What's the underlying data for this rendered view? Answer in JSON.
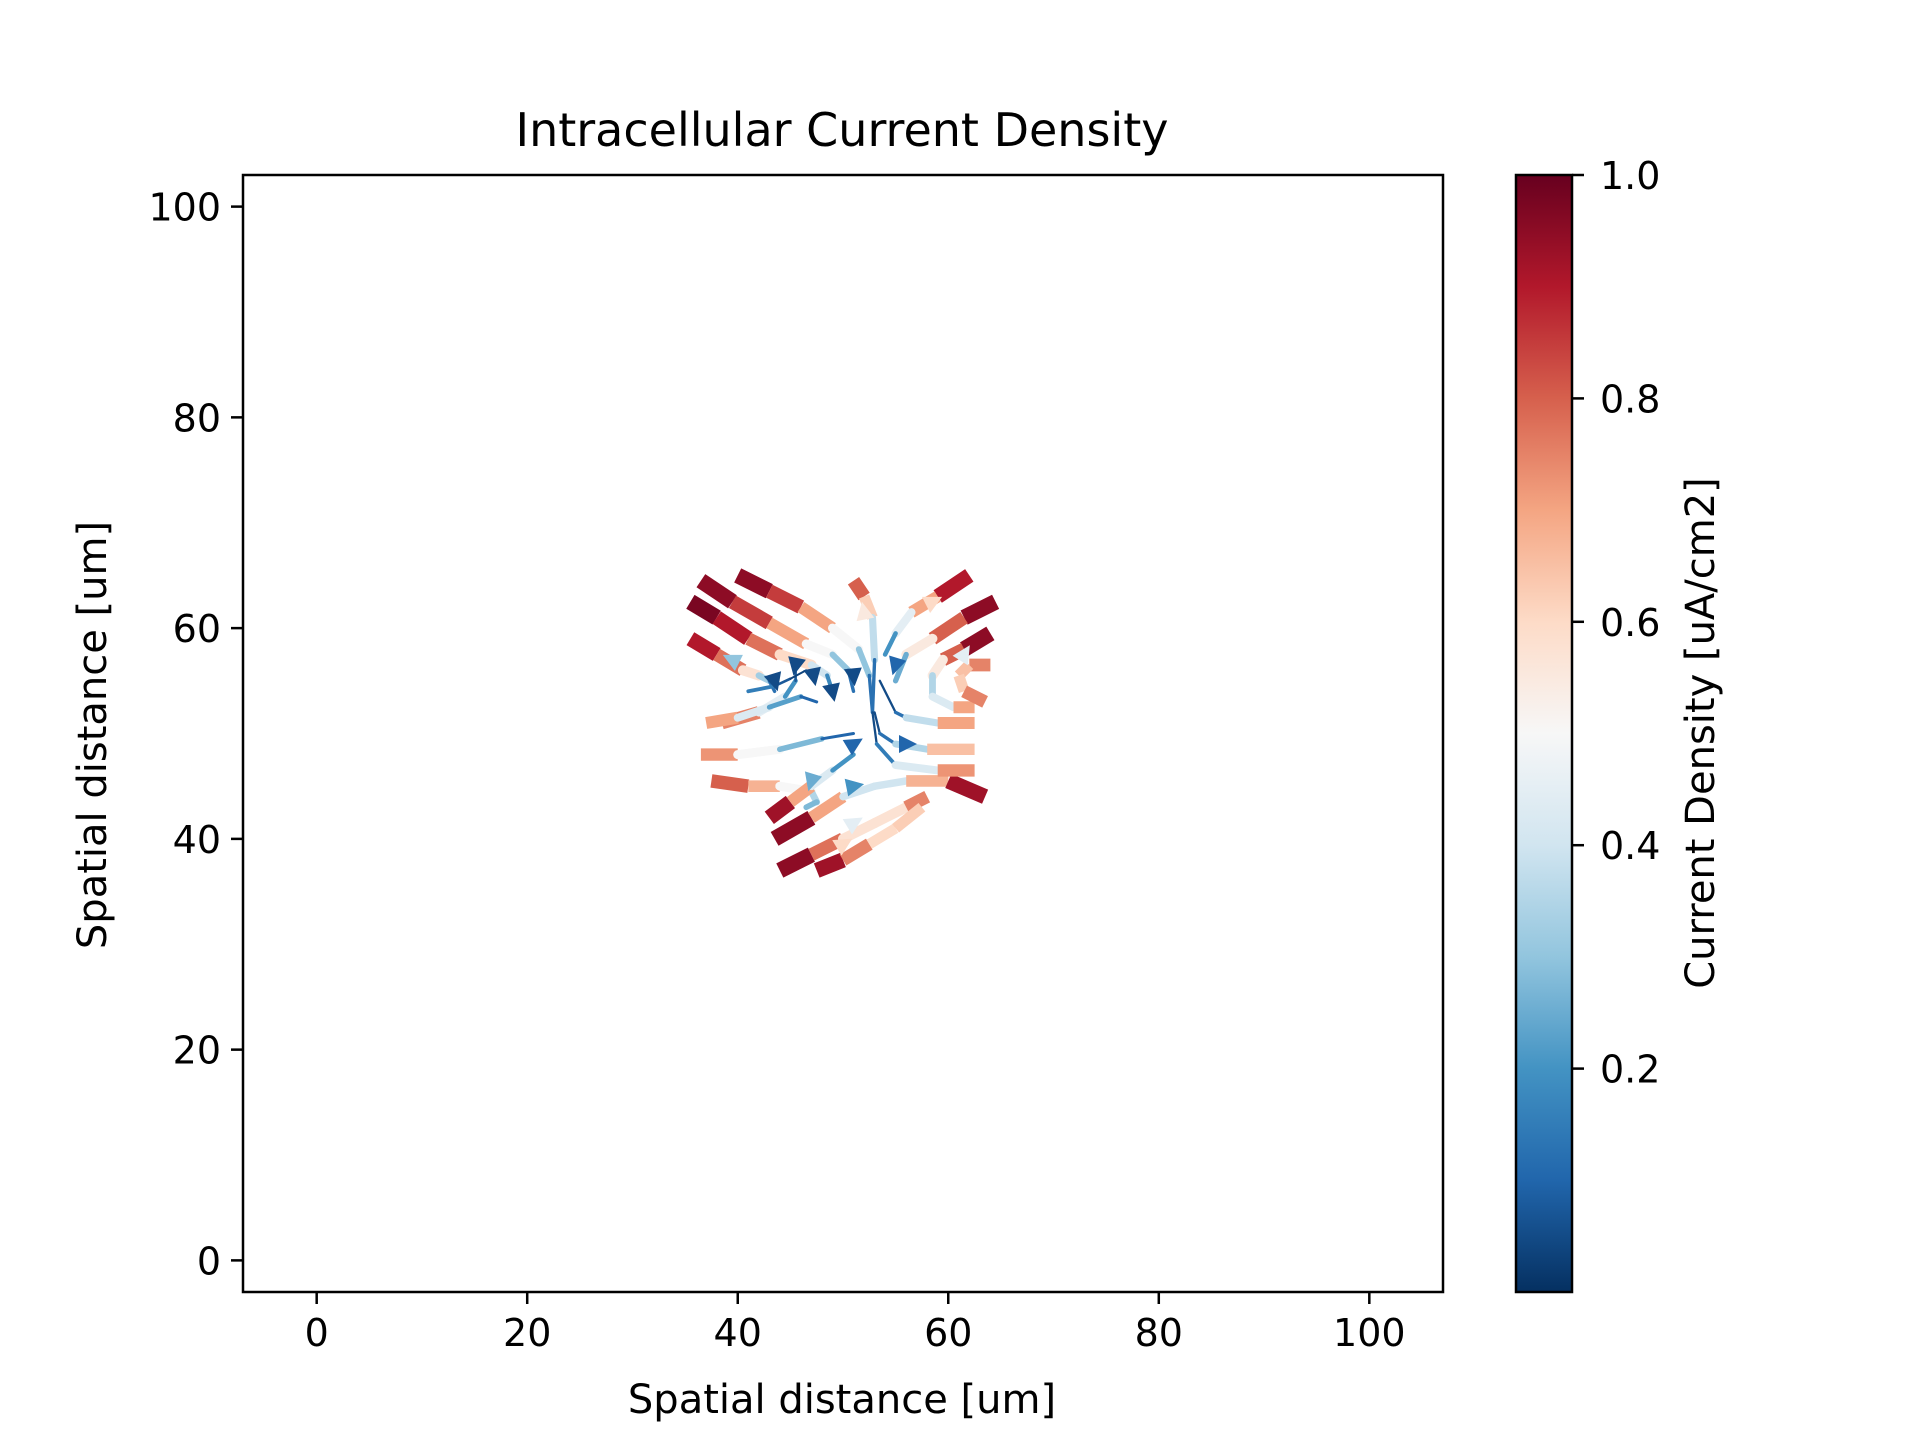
{
  "chart_data": {
    "type": "streamplot",
    "title": "Intracellular Current Density",
    "xlabel": "Spatial distance [um]",
    "ylabel": "Spatial distance [um]",
    "xlim": [
      -7,
      107
    ],
    "ylim": [
      -3,
      103
    ],
    "xticks": [
      0,
      20,
      40,
      60,
      80,
      100
    ],
    "yticks": [
      0,
      20,
      40,
      60,
      80,
      100
    ],
    "grid": false,
    "colorbar": {
      "label": "Current Density [uA/cm2]",
      "colormap": "RdBu_r",
      "range": [
        0.0,
        1.0
      ],
      "ticks": [
        0.2,
        0.4,
        0.6,
        0.8,
        1.0
      ]
    },
    "colors": {
      "low": "#053061",
      "mid": "#f7f7f7",
      "high": "#67001f"
    },
    "streamlines": [
      {
        "points": [
          [
            35.5,
            62.5
          ],
          [
            38,
            61
          ],
          [
            41,
            59
          ],
          [
            44,
            57.5
          ],
          [
            47,
            56.5
          ],
          [
            48.5,
            55.5
          ],
          [
            49,
            54
          ]
        ],
        "values": [
          1.0,
          0.95,
          0.85,
          0.7,
          0.5,
          0.3,
          0.05
        ]
      },
      {
        "points": [
          [
            36.5,
            64.5
          ],
          [
            39.5,
            62.5
          ],
          [
            43,
            60.5
          ],
          [
            46.5,
            58.5
          ],
          [
            49,
            57.5
          ],
          [
            50.5,
            56
          ],
          [
            51,
            54
          ]
        ],
        "values": [
          1.0,
          0.9,
          0.8,
          0.6,
          0.4,
          0.2,
          0.05
        ]
      },
      {
        "points": [
          [
            40,
            65
          ],
          [
            43,
            63.5
          ],
          [
            46,
            62
          ],
          [
            49,
            60
          ],
          [
            51.5,
            58
          ],
          [
            52.5,
            55.5
          ],
          [
            52.8,
            52
          ]
        ],
        "values": [
          1.0,
          0.9,
          0.8,
          0.6,
          0.4,
          0.2,
          0.05
        ]
      },
      {
        "points": [
          [
            35.5,
            59
          ],
          [
            38,
            57.5
          ],
          [
            40.5,
            56
          ],
          [
            42,
            55.5
          ],
          [
            43,
            55
          ],
          [
            43.5,
            54
          ]
        ],
        "values": [
          0.95,
          0.85,
          0.7,
          0.45,
          0.2,
          0.05
        ]
      },
      {
        "points": [
          [
            38.5,
            51
          ],
          [
            42,
            52
          ],
          [
            44.5,
            53.5
          ],
          [
            45.5,
            55
          ],
          [
            45.5,
            56.5
          ]
        ],
        "values": [
          0.9,
          0.6,
          0.3,
          0.1,
          0.05
        ]
      },
      {
        "points": [
          [
            41,
            54
          ],
          [
            43.5,
            54.5
          ],
          [
            45,
            55.2
          ],
          [
            46.5,
            56
          ]
        ],
        "values": [
          0.2,
          0.1,
          0.05,
          0.02
        ]
      },
      {
        "points": [
          [
            37,
            51
          ],
          [
            40,
            51.5
          ],
          [
            43,
            52.5
          ],
          [
            46,
            53.5
          ],
          [
            47.5,
            53
          ]
        ],
        "values": [
          0.85,
          0.55,
          0.3,
          0.15,
          0.05
        ]
      },
      {
        "points": [
          [
            36.5,
            48
          ],
          [
            40,
            48
          ],
          [
            44,
            48.5
          ],
          [
            48,
            49.5
          ],
          [
            51,
            50
          ]
        ],
        "values": [
          0.85,
          0.6,
          0.4,
          0.15,
          0.05
        ]
      },
      {
        "points": [
          [
            37.5,
            45.5
          ],
          [
            41,
            45
          ],
          [
            44,
            45
          ],
          [
            47,
            44.5
          ],
          [
            47.5,
            43.5
          ],
          [
            46.5,
            43
          ]
        ],
        "values": [
          0.85,
          0.75,
          0.6,
          0.4,
          0.3,
          0.25
        ]
      },
      {
        "points": [
          [
            43,
            42
          ],
          [
            45,
            43.5
          ],
          [
            47,
            45
          ],
          [
            49,
            46.5
          ],
          [
            51,
            48
          ]
        ],
        "values": [
          1.0,
          0.85,
          0.55,
          0.3,
          0.1
        ]
      },
      {
        "points": [
          [
            43.5,
            40
          ],
          [
            47,
            42
          ],
          [
            50,
            44
          ],
          [
            53,
            45
          ],
          [
            56,
            45.5
          ],
          [
            60,
            45.5
          ],
          [
            63.5,
            44
          ]
        ],
        "values": [
          1.0,
          0.9,
          0.5,
          0.3,
          0.5,
          0.85,
          1.0
        ]
      },
      {
        "points": [
          [
            44,
            37
          ],
          [
            47,
            38.5
          ],
          [
            50,
            40
          ],
          [
            53,
            41.5
          ],
          [
            56,
            43
          ],
          [
            58,
            44
          ]
        ],
        "values": [
          1.0,
          0.9,
          0.65,
          0.5,
          0.65,
          0.85
        ]
      },
      {
        "points": [
          [
            47.5,
            37
          ],
          [
            50,
            38
          ],
          [
            52.5,
            39.5
          ],
          [
            55,
            41
          ],
          [
            57.5,
            43
          ]
        ],
        "values": [
          1.0,
          0.85,
          0.65,
          0.55,
          0.7
        ]
      },
      {
        "points": [
          [
            51,
            64.5
          ],
          [
            52,
            63
          ],
          [
            52.8,
            61
          ],
          [
            53,
            57
          ],
          [
            52.8,
            52
          ],
          [
            53.2,
            49
          ],
          [
            55,
            47
          ],
          [
            59,
            46.5
          ],
          [
            62.5,
            46.5
          ]
        ],
        "values": [
          0.9,
          0.7,
          0.55,
          0.2,
          0.05,
          0.05,
          0.25,
          0.6,
          0.85
        ]
      },
      {
        "points": [
          [
            53,
            52
          ],
          [
            53.5,
            50
          ],
          [
            55,
            49
          ],
          [
            58,
            48.5
          ],
          [
            62.5,
            48.5
          ]
        ],
        "values": [
          0.05,
          0.05,
          0.2,
          0.5,
          0.8
        ]
      },
      {
        "points": [
          [
            53.5,
            55
          ],
          [
            55,
            52
          ],
          [
            56,
            51.5
          ],
          [
            59,
            51
          ],
          [
            62.5,
            51
          ]
        ],
        "values": [
          0.05,
          0.05,
          0.2,
          0.55,
          0.85
        ]
      },
      {
        "points": [
          [
            62,
            65
          ],
          [
            59,
            63
          ],
          [
            56.5,
            61.5
          ],
          [
            55,
            59.5
          ],
          [
            54,
            57.5
          ]
        ],
        "values": [
          1.0,
          0.8,
          0.6,
          0.3,
          0.1
        ]
      },
      {
        "points": [
          [
            64.5,
            62.5
          ],
          [
            61.5,
            61
          ],
          [
            58.5,
            59
          ],
          [
            56,
            57.5
          ],
          [
            55,
            55
          ]
        ],
        "values": [
          1.0,
          0.9,
          0.7,
          0.4,
          0.1
        ]
      },
      {
        "points": [
          [
            64,
            59.5
          ],
          [
            61.5,
            58
          ],
          [
            59.5,
            57
          ],
          [
            58.5,
            55.5
          ],
          [
            58.5,
            53.5
          ],
          [
            60.5,
            52.5
          ],
          [
            62.5,
            52.5
          ]
        ],
        "values": [
          1.0,
          0.9,
          0.7,
          0.4,
          0.3,
          0.55,
          0.85
        ]
      },
      {
        "points": [
          [
            64,
            56.5
          ],
          [
            62,
            56.5
          ],
          [
            61,
            55.5
          ],
          [
            61.5,
            54
          ],
          [
            63.5,
            53
          ]
        ],
        "values": [
          0.8,
          0.7,
          0.6,
          0.65,
          0.85
        ]
      }
    ],
    "arrows": [
      {
        "at": [
          43.5,
          55
        ],
        "dir": [
          0.3,
          -1
        ],
        "value": 0.05
      },
      {
        "at": [
          45.5,
          56.5
        ],
        "dir": [
          -0.2,
          -1
        ],
        "value": 0.05
      },
      {
        "at": [
          47.2,
          55.5
        ],
        "dir": [
          0.2,
          -1
        ],
        "value": 0.05
      },
      {
        "at": [
          49,
          54
        ],
        "dir": [
          0.2,
          -1
        ],
        "value": 0.05
      },
      {
        "at": [
          51,
          55.5
        ],
        "dir": [
          0.1,
          -1
        ],
        "value": 0.05
      },
      {
        "at": [
          55,
          56.5
        ],
        "dir": [
          -0.3,
          -1
        ],
        "value": 0.1
      },
      {
        "at": [
          51,
          49
        ],
        "dir": [
          1,
          0.6
        ],
        "value": 0.1
      },
      {
        "at": [
          56,
          49
        ],
        "dir": [
          1,
          0
        ],
        "value": 0.1
      },
      {
        "at": [
          51,
          45
        ],
        "dir": [
          1,
          0.2
        ],
        "value": 0.2
      },
      {
        "at": [
          47,
          45.5
        ],
        "dir": [
          -0.3,
          -1
        ],
        "value": 0.25
      },
      {
        "at": [
          39.5,
          57
        ],
        "dir": [
          -1,
          0.5
        ],
        "value": 0.3
      },
      {
        "at": [
          52,
          61.5
        ],
        "dir": [
          -0.2,
          1
        ],
        "value": 0.55
      },
      {
        "at": [
          58.5,
          62.5
        ],
        "dir": [
          1,
          0.5
        ],
        "value": 0.6
      },
      {
        "at": [
          61.5,
          57.5
        ],
        "dir": [
          0.5,
          0.8
        ],
        "value": 0.45
      },
      {
        "at": [
          51,
          41.5
        ],
        "dir": [
          1,
          0.6
        ],
        "value": 0.45
      },
      {
        "at": [
          50,
          39.5
        ],
        "dir": [
          1,
          0.6
        ],
        "value": 0.6
      }
    ]
  }
}
